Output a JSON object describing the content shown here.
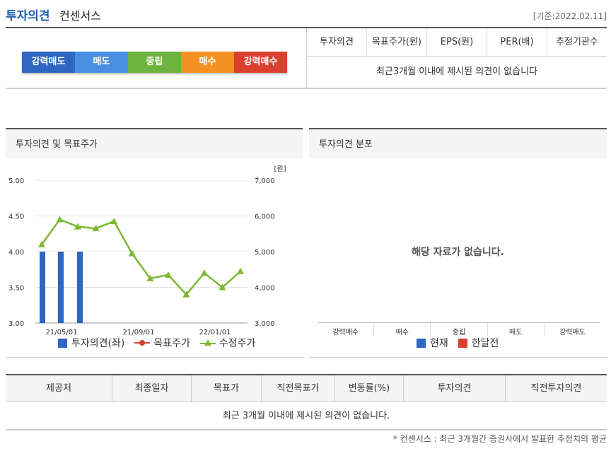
{
  "header": {
    "title_part1": "투자의견",
    "title_part2": "컨센서스",
    "date": "[기준:2022.02.11]"
  },
  "opinion_scale": [
    {
      "label": "강력매도",
      "color": "#2e67c2"
    },
    {
      "label": "매도",
      "color": "#4a90e2"
    },
    {
      "label": "중립",
      "color": "#6cb33f"
    },
    {
      "label": "매수",
      "color": "#f39222"
    },
    {
      "label": "강력매수",
      "color": "#d9402e"
    }
  ],
  "consensus_table": {
    "columns": [
      "투자의견",
      "목표주가(원)",
      "EPS(원)",
      "PER(배)",
      "추정기관수"
    ],
    "empty_message": "최근3개월 이내에 제시된 의견이 없습니다"
  },
  "opinion_chart": {
    "title": "투자의견 및 목표주가",
    "unit": "[원]",
    "legend": [
      {
        "label": "투자의견(좌)",
        "icon": "blue-square",
        "color": "#2e67c2"
      },
      {
        "label": "목표주가",
        "icon": "red-dot",
        "color": "#d9402e"
      },
      {
        "label": "수정주가",
        "icon": "green-triangle",
        "color": "#7cb832"
      }
    ]
  },
  "distribution_chart": {
    "title": "투자의견 분포",
    "no_data": "해당 자료가 없습니다.",
    "categories": [
      "강력매수",
      "매수",
      "중립",
      "매도",
      "강력매도"
    ],
    "legend": [
      {
        "label": "현재",
        "color": "#2e67c2"
      },
      {
        "label": "한달전",
        "color": "#d9402e"
      }
    ]
  },
  "detail_table": {
    "columns": [
      "제공처",
      "최종일자",
      "목표가",
      "직전목표가",
      "변동률(%)",
      "투자의견",
      "직전투자의견"
    ],
    "empty_message": "최근 3개월 이내에 제시된 의견이 없습니다."
  },
  "footnote": "* 컨센서스 : 최근 3개월간 증권사에서 발표한 추정치의 평균",
  "chart_data": {
    "type": "bar",
    "title": "투자의견 및 목표주가",
    "x_ticks": [
      "21/05/01",
      "21/09/01",
      "22/01/01"
    ],
    "left_axis": {
      "ticks": [
        "5.00",
        "4.50",
        "4.00",
        "3.50",
        "3.00"
      ],
      "ylim": [
        3.0,
        5.0
      ]
    },
    "right_axis": {
      "ticks": [
        "7,000",
        "6,000",
        "5,000",
        "4,000",
        "3,000"
      ],
      "ylim": [
        3000,
        7000
      ]
    },
    "series": [
      {
        "name": "투자의견(좌)",
        "axis": "left",
        "type": "bar",
        "color": "#2e67c2",
        "values": [
          4.0,
          4.0,
          4.0
        ]
      },
      {
        "name": "수정주가",
        "axis": "right",
        "type": "line",
        "color": "#7cb832",
        "values": [
          5200,
          5900,
          5700,
          5650,
          5850,
          4950,
          4250,
          4350,
          3800,
          4400,
          4000,
          4450
        ]
      }
    ]
  }
}
